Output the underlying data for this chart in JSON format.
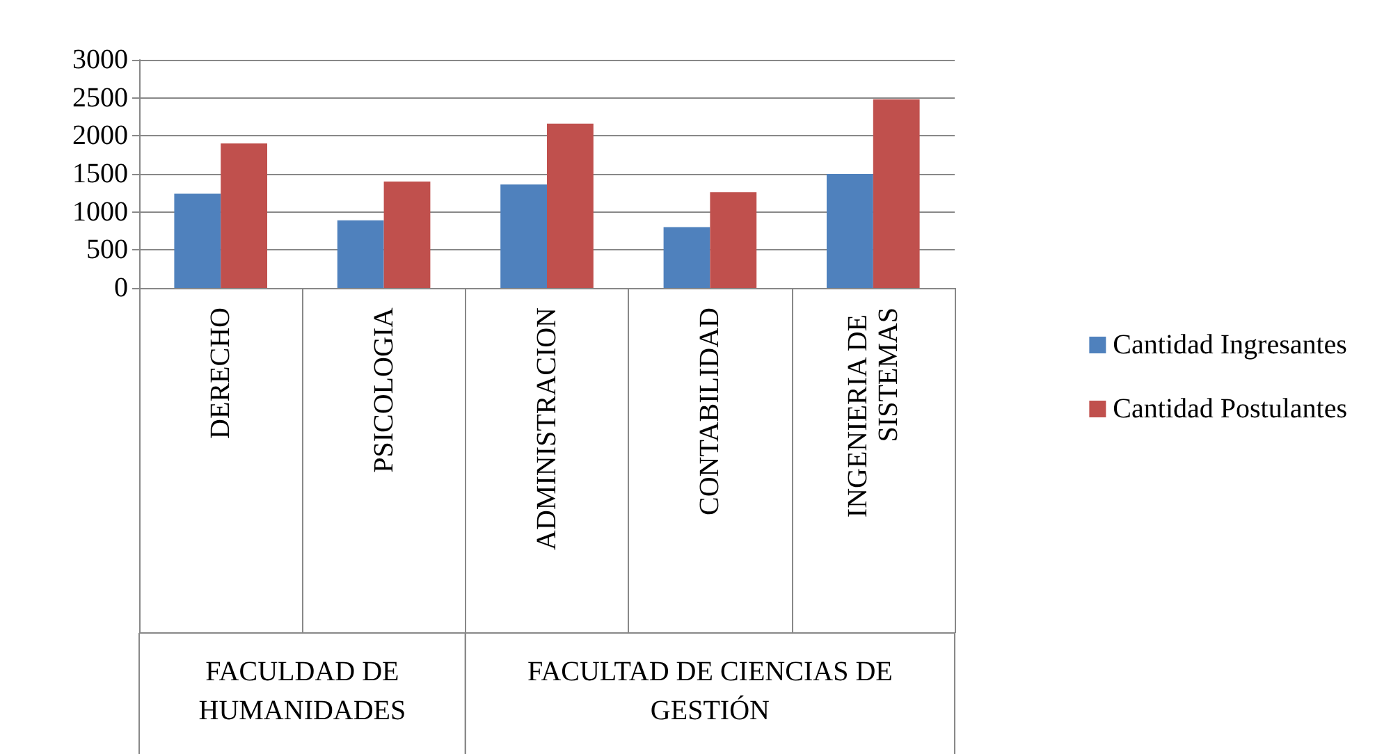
{
  "chart_data": {
    "type": "bar",
    "categories": [
      "DERECHO",
      "PSICOLOGIA",
      "ADMINISTRACION",
      "CONTABILIDAD",
      "INGENIERIA DE SISTEMAS"
    ],
    "series": [
      {
        "name": "Cantidad Ingresantes",
        "color": "#4f81bd",
        "values": [
          1240,
          890,
          1360,
          800,
          1500
        ]
      },
      {
        "name": "Cantidad Postulantes",
        "color": "#c0504d",
        "values": [
          1900,
          1400,
          2160,
          1260,
          2480
        ]
      }
    ],
    "ylim": [
      0,
      3000
    ],
    "yticks": [
      0,
      500,
      1000,
      1500,
      2000,
      2500,
      3000
    ],
    "grid": "y",
    "legend": "right",
    "annotations": [
      "FACULDAD DE HUMANIDADES",
      "FACULTAD DE CIENCIAS DE GESTIÓN"
    ]
  }
}
